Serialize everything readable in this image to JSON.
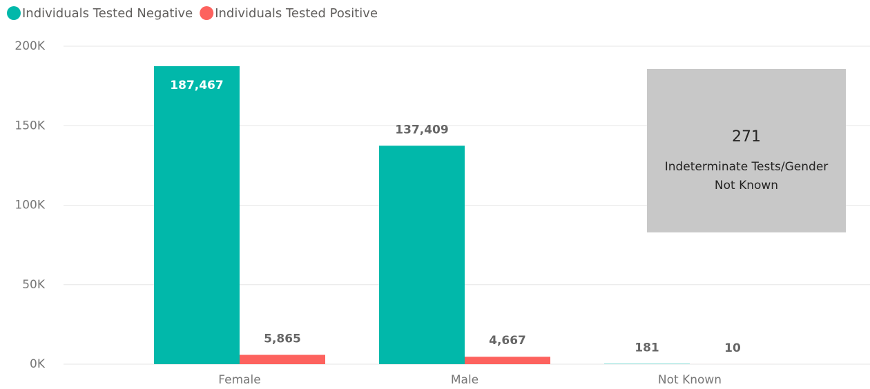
{
  "chart_data": {
    "type": "bar",
    "categories": [
      "Female",
      "Male",
      "Not Known"
    ],
    "series": [
      {
        "name": "Individuals Tested Negative",
        "color": "#01B8AA",
        "values": [
          187467,
          137409,
          181
        ],
        "value_labels": [
          "187,467",
          "137,409",
          "181"
        ]
      },
      {
        "name": "Individuals Tested Positive",
        "color": "#FD625E",
        "values": [
          5865,
          4667,
          10
        ],
        "value_labels": [
          "5,865",
          "4,667",
          "10"
        ]
      }
    ],
    "ylim": [
      0,
      200000
    ],
    "yticks": [
      {
        "value": 0,
        "label": "0K"
      },
      {
        "value": 50000,
        "label": "50K"
      },
      {
        "value": 100000,
        "label": "100K"
      },
      {
        "value": 150000,
        "label": "150K"
      },
      {
        "value": 200000,
        "label": "200K"
      }
    ],
    "grid": true,
    "legend": "top-left",
    "annotation": {
      "value": 271,
      "label": "Indeterminate Tests/Gender Not Known"
    }
  }
}
